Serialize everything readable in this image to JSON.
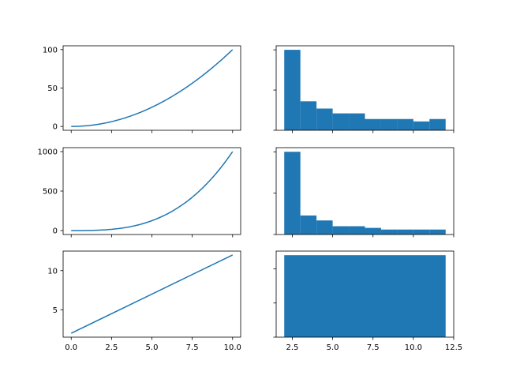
{
  "figure": {
    "background": "#ffffff",
    "series_color": "#1f77b4"
  },
  "chart_data": [
    {
      "type": "line",
      "panel": "row-1-left",
      "function": "x^2",
      "x": [
        0,
        1,
        2,
        3,
        4,
        5,
        6,
        7,
        8,
        9,
        10
      ],
      "y": [
        0,
        1,
        4,
        9,
        16,
        25,
        36,
        49,
        64,
        81,
        100
      ],
      "xlim": [
        -0.5,
        10.5
      ],
      "ylim": [
        -5,
        105
      ],
      "yticks": [
        0,
        50,
        100
      ],
      "ytick_labels": [
        "0",
        "50",
        "100"
      ],
      "xticks": [
        0,
        2.5,
        5,
        7.5,
        10
      ],
      "xtick_labels": [],
      "title": "",
      "xlabel": "",
      "ylabel": ""
    },
    {
      "type": "bar",
      "panel": "row-1-right",
      "bin_edges": [
        2,
        3,
        4,
        5,
        6,
        7,
        8,
        9,
        10,
        11,
        12
      ],
      "values": [
        100,
        36,
        27,
        21,
        21,
        14,
        14,
        14,
        11,
        14
      ],
      "xlim": [
        1.5,
        12.5
      ],
      "ylim": [
        0,
        105
      ],
      "yticks": [
        0,
        50,
        100
      ],
      "ytick_labels": [],
      "xticks": [
        2.5,
        5,
        7.5,
        10,
        12.5
      ],
      "xtick_labels": [],
      "title": "",
      "xlabel": "",
      "ylabel": ""
    },
    {
      "type": "line",
      "panel": "row-2-left",
      "function": "x^3",
      "x": [
        0,
        1,
        2,
        3,
        4,
        5,
        6,
        7,
        8,
        9,
        10
      ],
      "y": [
        0,
        1,
        8,
        27,
        64,
        125,
        216,
        343,
        512,
        729,
        1000
      ],
      "xlim": [
        -0.5,
        10.5
      ],
      "ylim": [
        -50,
        1050
      ],
      "yticks": [
        0,
        500,
        1000
      ],
      "ytick_labels": [
        "0",
        "500",
        "1000"
      ],
      "xticks": [
        0,
        2.5,
        5,
        7.5,
        10
      ],
      "xtick_labels": [],
      "title": "",
      "xlabel": "",
      "ylabel": ""
    },
    {
      "type": "bar",
      "panel": "row-2-right",
      "bin_edges": [
        2,
        3,
        4,
        5,
        6,
        7,
        8,
        9,
        10,
        11,
        12
      ],
      "values": [
        1000,
        230,
        170,
        100,
        100,
        80,
        60,
        60,
        60,
        60
      ],
      "xlim": [
        1.5,
        12.5
      ],
      "ylim": [
        0,
        1050
      ],
      "yticks": [
        0,
        500,
        1000
      ],
      "ytick_labels": [],
      "xticks": [
        2.5,
        5,
        7.5,
        10,
        12.5
      ],
      "xtick_labels": [],
      "title": "",
      "xlabel": "",
      "ylabel": ""
    },
    {
      "type": "line",
      "panel": "row-3-left",
      "function": "x+2",
      "x": [
        0,
        10
      ],
      "y": [
        2,
        12
      ],
      "xlim": [
        -0.5,
        10.5
      ],
      "ylim": [
        1.5,
        12.5
      ],
      "yticks": [
        5,
        10
      ],
      "ytick_labels": [
        "5",
        "10"
      ],
      "xticks": [
        0,
        2.5,
        5,
        7.5,
        10
      ],
      "xtick_labels": [
        "0.0",
        "2.5",
        "5.0",
        "7.5",
        "10.0"
      ],
      "title": "",
      "xlabel": "",
      "ylabel": ""
    },
    {
      "type": "bar",
      "panel": "row-3-right",
      "bin_edges": [
        2,
        12
      ],
      "values": [
        12
      ],
      "xlim": [
        1.5,
        12.5
      ],
      "ylim": [
        0,
        12.6
      ],
      "yticks": [
        0,
        5,
        10
      ],
      "ytick_labels": [],
      "xticks": [
        2.5,
        5,
        7.5,
        10,
        12.5
      ],
      "xtick_labels": [
        "2.5",
        "5.0",
        "7.5",
        "10.0",
        "12.5"
      ],
      "title": "",
      "xlabel": "",
      "ylabel": ""
    }
  ]
}
